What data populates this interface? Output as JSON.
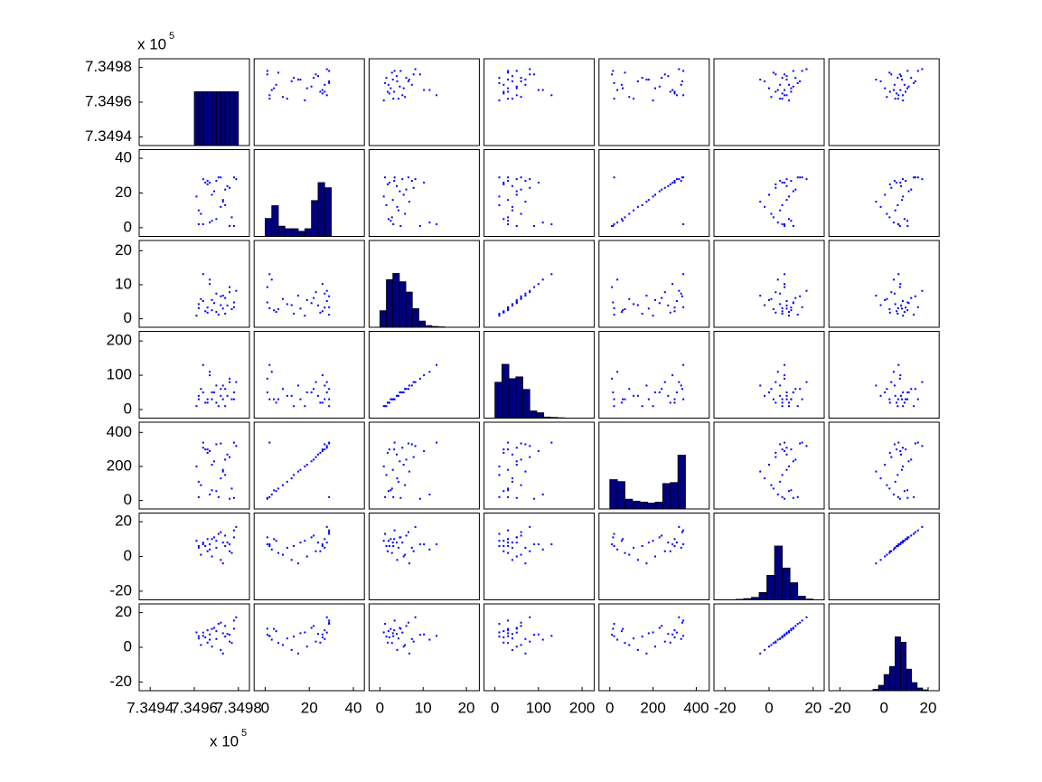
{
  "chart_data": {
    "type": "scatter-matrix",
    "point_color": "#0000ff",
    "hist_color": "#00007f",
    "variables": [
      {
        "lim": [
          734935,
          734985
        ],
        "ticks": [
          {
            "value": 734940,
            "label": "7.3494"
          },
          {
            "value": 734960,
            "label": "7.3496"
          },
          {
            "value": 734980,
            "label": "7.3498"
          }
        ],
        "exponent_label": {
          "base": "x 10",
          "power": "5"
        },
        "values": [
          734962,
          734964,
          734966,
          734968,
          734970,
          734972,
          734974,
          734976,
          734978,
          734961,
          734963,
          734965,
          734967,
          734969,
          734971,
          734973,
          734975,
          734977,
          734979,
          734962,
          734964,
          734966,
          734968,
          734970,
          734972,
          734974,
          734976,
          734978,
          734967,
          734973
        ],
        "hist": {
          "bins": [
            734960,
            734962,
            734964,
            734966,
            734968,
            734970,
            734972,
            734974,
            734976,
            734978,
            734980
          ],
          "counts": [
            10,
            10,
            10,
            10,
            10,
            10,
            10,
            10,
            10,
            10
          ]
        }
      },
      {
        "lim": [
          -5,
          45
        ],
        "ticks": [
          0,
          20,
          40
        ],
        "values": [
          2,
          28,
          25,
          4,
          27,
          12,
          22,
          1,
          29,
          18,
          8,
          26,
          3,
          21,
          29,
          15,
          24,
          6,
          28,
          10,
          2,
          27,
          19,
          5,
          29,
          13,
          23,
          1,
          26,
          16
        ],
        "hist": {
          "bins": [
            0,
            3,
            6,
            9,
            12,
            15,
            18,
            21,
            24,
            27,
            30
          ],
          "counts": [
            7,
            12,
            4,
            3,
            3,
            2,
            3,
            14,
            21,
            19
          ]
        }
      },
      {
        "lim": [
          -2.5,
          23
        ],
        "ticks": [
          0,
          10,
          20
        ],
        "values": [
          3.1,
          5.2,
          1.8,
          2.5,
          7.4,
          4.0,
          6.1,
          9.3,
          3.4,
          0.9,
          5.8,
          2.2,
          11.5,
          4.6,
          1.2,
          6.8,
          3.9,
          2.8,
          8.2,
          4.3,
          13.1,
          3.3,
          5.5,
          2.0,
          6.6,
          1.5,
          7.8,
          4.8,
          10.2,
          3.0
        ],
        "hist": {
          "bins": [
            0,
            1.5,
            3,
            4.5,
            6,
            7.5,
            9,
            10.5,
            12,
            13.5,
            15
          ],
          "counts": [
            40,
            115,
            130,
            110,
            85,
            45,
            15,
            4,
            2,
            1
          ]
        }
      },
      {
        "lim": [
          -25,
          228
        ],
        "ticks": [
          0,
          100,
          200
        ],
        "values": [
          30,
          50,
          20,
          30,
          70,
          40,
          60,
          90,
          30,
          10,
          60,
          20,
          110,
          50,
          10,
          70,
          40,
          30,
          80,
          40,
          130,
          30,
          50,
          20,
          60,
          10,
          80,
          50,
          100,
          30
        ],
        "hist": {
          "bins": [
            0,
            16,
            32,
            48,
            64,
            80,
            96,
            112,
            128,
            144,
            160
          ],
          "counts": [
            100,
            150,
            110,
            115,
            80,
            20,
            15,
            3,
            2,
            1
          ]
        }
      },
      {
        "lim": [
          -50,
          460
        ],
        "ticks": [
          0,
          200,
          400
        ],
        "values": [
          20,
          310,
          280,
          60,
          330,
          130,
          240,
          10,
          340,
          200,
          90,
          300,
          35,
          230,
          20,
          170,
          270,
          70,
          320,
          110,
          340,
          300,
          210,
          55,
          335,
          150,
          255,
          15,
          290,
          180
        ],
        "hist": {
          "bins": [
            0,
            35,
            70,
            105,
            140,
            175,
            210,
            245,
            280,
            315,
            350
          ],
          "counts": [
            150,
            140,
            50,
            40,
            35,
            30,
            35,
            130,
            135,
            275
          ]
        }
      },
      {
        "lim": [
          -25,
          25
        ],
        "ticks": [
          -20,
          0,
          20
        ],
        "values": [
          6,
          8,
          3,
          10,
          5,
          -2,
          12,
          7,
          15,
          9,
          1,
          6,
          4,
          11,
          13,
          -4,
          8,
          2,
          17,
          5,
          7,
          10,
          0,
          9,
          14,
          6,
          3,
          11,
          7,
          8
        ],
        "hist": {
          "bins": [
            -15,
            -11.5,
            -8,
            -4.5,
            -1,
            2.5,
            6,
            9.5,
            13,
            16.5,
            20
          ],
          "counts": [
            2,
            5,
            10,
            30,
            100,
            220,
            130,
            70,
            15,
            3
          ]
        }
      },
      {
        "lim": [
          -25,
          25
        ],
        "ticks": [
          -20,
          0,
          20
        ],
        "values": [
          6.4,
          8.5,
          2.7,
          10.6,
          4.8,
          -1.5,
          12.3,
          7.2,
          15.4,
          8.6,
          1.3,
          5.7,
          4.4,
          11.2,
          13.5,
          -3.6,
          7.7,
          2.5,
          17.3,
          5.1,
          6.6,
          9.8,
          0.4,
          9.3,
          14.2,
          6.2,
          3.3,
          10.7,
          7.4,
          8.1
        ],
        "hist": {
          "bins": [
            -5,
            -2.5,
            0,
            2.5,
            5,
            7.5,
            10,
            12.5,
            15,
            17.5,
            20
          ],
          "counts": [
            5,
            20,
            60,
            90,
            200,
            180,
            80,
            30,
            10,
            3
          ]
        }
      }
    ]
  }
}
